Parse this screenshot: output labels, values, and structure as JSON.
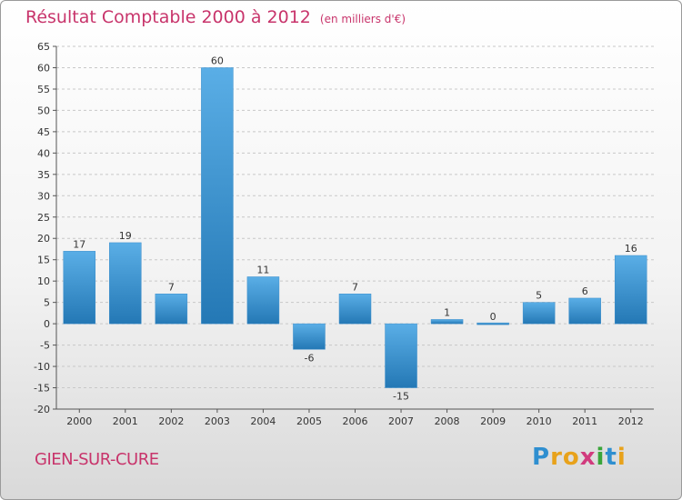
{
  "title": "Résultat Comptable 2000 à 2012",
  "title_unit": "(en milliers d'€)",
  "location": "GIEN-SUR-CURE",
  "logo": {
    "text": "Proxiti",
    "letters": [
      {
        "char": "P",
        "color": "#2f8fd0"
      },
      {
        "char": "r",
        "color": "#e8a21b"
      },
      {
        "char": "o",
        "color": "#e8a21b"
      },
      {
        "char": "x",
        "color": "#d13b7e"
      },
      {
        "char": "i",
        "color": "#3aa53a"
      },
      {
        "char": "t",
        "color": "#2f8fd0"
      },
      {
        "char": "i",
        "color": "#e8a21b"
      }
    ]
  },
  "colors": {
    "title": "#c8346b",
    "bar_light": "#5aaee6",
    "bar_dark": "#2478b5",
    "grid": "#c8c8c8",
    "axis_text": "#333333"
  },
  "chart_data": {
    "type": "bar",
    "categories": [
      "2000",
      "2001",
      "2002",
      "2003",
      "2004",
      "2005",
      "2006",
      "2007",
      "2008",
      "2009",
      "2010",
      "2011",
      "2012"
    ],
    "values": [
      17,
      19,
      7,
      60,
      11,
      -6,
      7,
      -15,
      1,
      0,
      5,
      6,
      16
    ],
    "ylim": [
      -20,
      65
    ],
    "yticks": [
      65,
      60,
      55,
      50,
      45,
      40,
      35,
      30,
      25,
      20,
      15,
      10,
      5,
      0,
      -5,
      -10,
      -15,
      -20
    ],
    "grid": true,
    "grid_style": "dashed"
  }
}
